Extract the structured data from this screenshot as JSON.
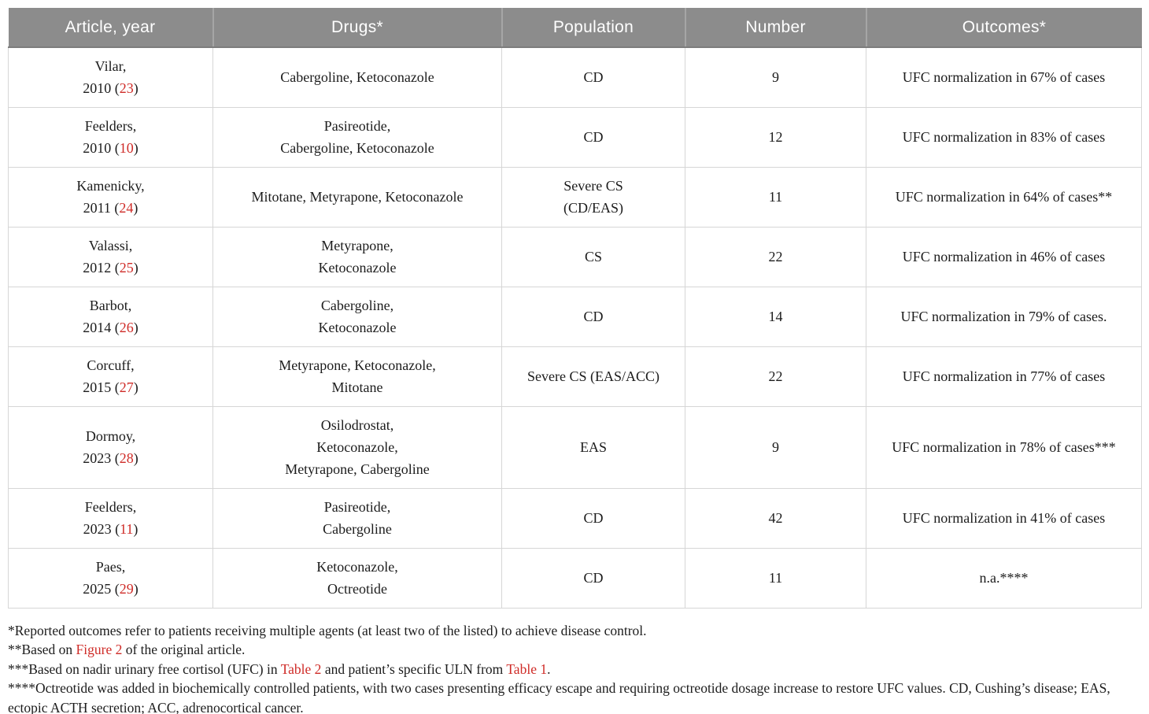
{
  "colors": {
    "header_bg": "#8c8c8c",
    "header_text": "#ffffff",
    "body_text": "#1c1c1c",
    "cell_border": "#d6d6d6",
    "accent_red": "#cf2b27"
  },
  "table": {
    "columns": [
      {
        "label": "Article, year"
      },
      {
        "label": "Drugs*"
      },
      {
        "label": "Population"
      },
      {
        "label": "Number"
      },
      {
        "label": "Outcomes*"
      }
    ],
    "rows": [
      {
        "author": "Vilar,",
        "year": "2010",
        "ref": "23",
        "drugs": "Cabergoline, Ketoconazole",
        "population": "CD",
        "number": "9",
        "outcome": "UFC normalization in 67% of cases"
      },
      {
        "author": "Feelders,",
        "year": "2010",
        "ref": "10",
        "drugs": "Pasireotide,\nCabergoline, Ketoconazole",
        "population": "CD",
        "number": "12",
        "outcome": "UFC normalization in 83% of cases"
      },
      {
        "author": "Kamenicky,",
        "year": "2011",
        "ref": "24",
        "drugs": "Mitotane, Metyrapone, Ketoconazole",
        "population": "Severe CS\n(CD/EAS)",
        "number": "11",
        "outcome": "UFC normalization in 64% of cases**"
      },
      {
        "author": "Valassi,",
        "year": "2012",
        "ref": "25",
        "drugs": "Metyrapone,\nKetoconazole",
        "population": "CS",
        "number": "22",
        "outcome": "UFC normalization in 46% of cases"
      },
      {
        "author": "Barbot,",
        "year": "2014",
        "ref": "26",
        "drugs": "Cabergoline,\nKetoconazole",
        "population": "CD",
        "number": "14",
        "outcome": "UFC normalization in 79% of cases."
      },
      {
        "author": "Corcuff,",
        "year": "2015",
        "ref": "27",
        "drugs": "Metyrapone, Ketoconazole,\nMitotane",
        "population": "Severe CS (EAS/ACC)",
        "number": "22",
        "outcome": "UFC normalization in 77% of cases"
      },
      {
        "author": "Dormoy,",
        "year": "2023",
        "ref": "28",
        "drugs": "Osilodrostat,\nKetoconazole,\nMetyrapone, Cabergoline",
        "population": "EAS",
        "number": "9",
        "outcome": "UFC normalization in 78% of cases***"
      },
      {
        "author": "Feelders,",
        "year": "2023",
        "ref": "11",
        "drugs": "Pasireotide,\nCabergoline",
        "population": "CD",
        "number": "42",
        "outcome": "UFC normalization in 41% of cases"
      },
      {
        "author": "Paes,",
        "year": "2025",
        "ref": "29",
        "drugs": "Ketoconazole,\nOctreotide",
        "population": "CD",
        "number": "11",
        "outcome": "n.a.****"
      }
    ]
  },
  "footnotes": [
    [
      {
        "text": "*Reported outcomes refer to patients receiving multiple agents (at least two of the listed) to achieve disease control."
      }
    ],
    [
      {
        "text": "**Based on "
      },
      {
        "text": "Figure 2",
        "link": true
      },
      {
        "text": " of the original article."
      }
    ],
    [
      {
        "text": "***Based on nadir urinary free cortisol (UFC) in "
      },
      {
        "text": "Table 2",
        "link": true
      },
      {
        "text": " and patient’s specific ULN from "
      },
      {
        "text": "Table 1",
        "link": true
      },
      {
        "text": "."
      }
    ],
    [
      {
        "text": "****Octreotide was added in biochemically controlled patients, with two cases presenting efficacy escape and requiring octreotide dosage increase to restore UFC values. CD, Cushing’s disease; EAS, ectopic ACTH secretion; ACC, adrenocortical cancer."
      }
    ]
  ]
}
